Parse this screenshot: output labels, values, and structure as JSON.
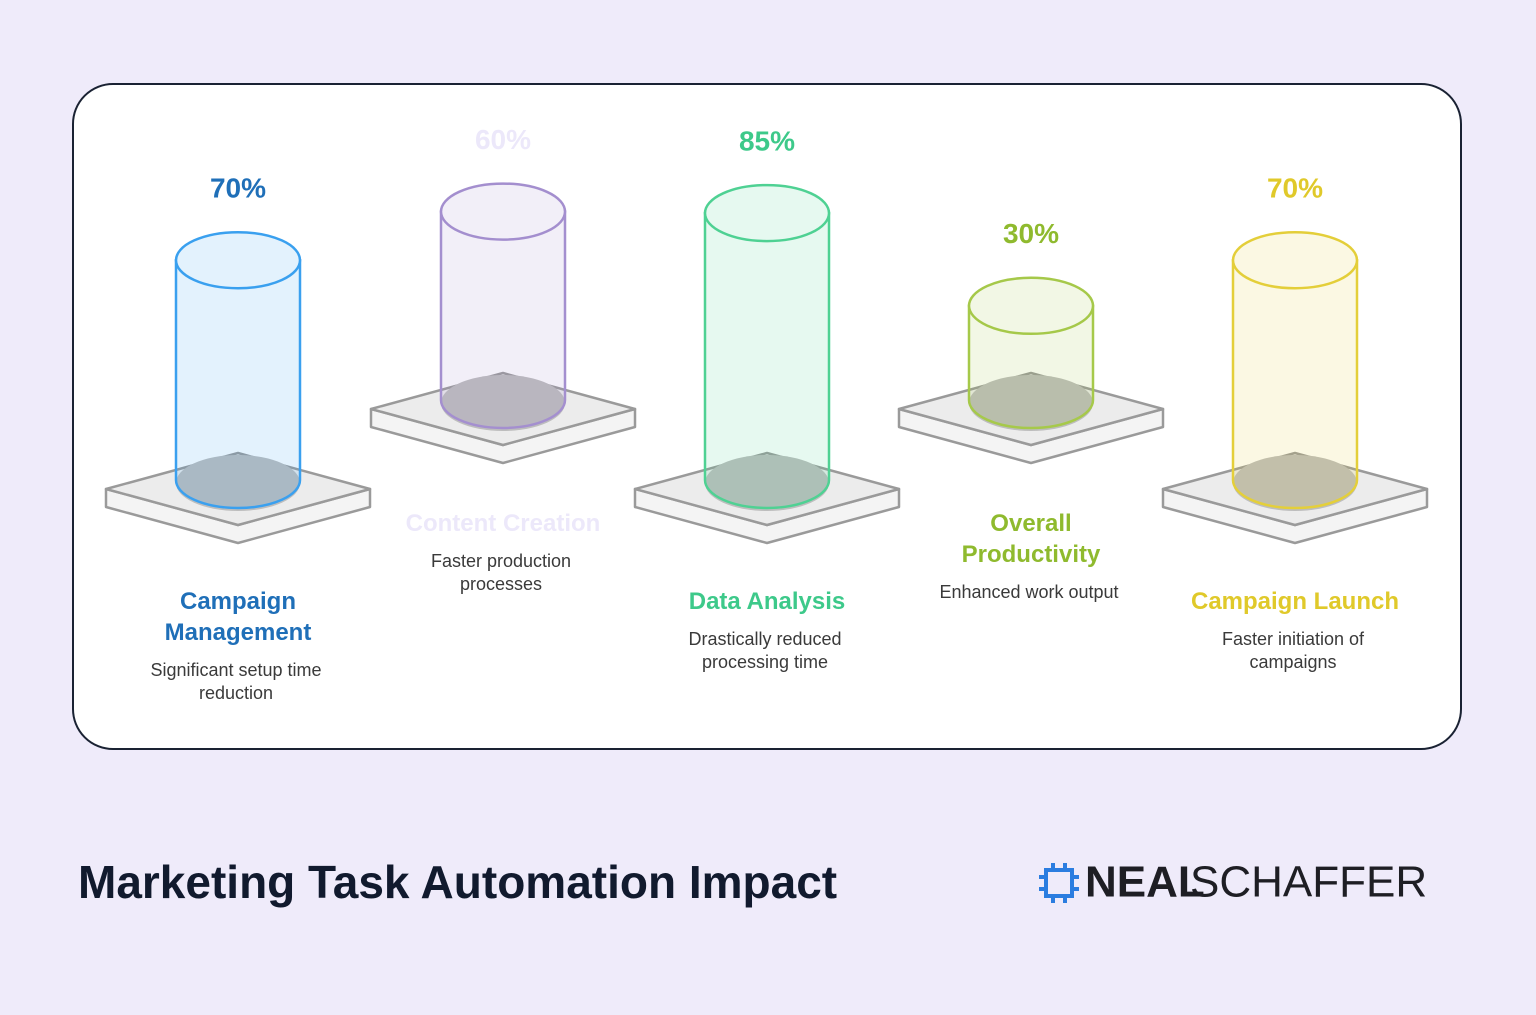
{
  "chart_data": {
    "type": "cylinder",
    "title": "Marketing Task Automation Impact",
    "categories": [
      "Campaign Management",
      "Content Creation",
      "Data Analysis",
      "Overall Productivity",
      "Campaign Launch"
    ],
    "values": [
      70,
      60,
      85,
      30,
      70
    ],
    "value_labels": [
      "70%",
      "60%",
      "85%",
      "30%",
      "70%"
    ],
    "descriptions": [
      "Significant setup time reduction",
      "Faster production processes",
      "Drastically reduced processing time",
      "Enhanced work output",
      "Faster initiation of campaigns"
    ],
    "colors": [
      "#3aa0ef",
      "#a48fcf",
      "#4fd193",
      "#a6c94a",
      "#e4cf3a"
    ],
    "label_colors": [
      "#1f6fb8",
      "#ece8fa",
      "#3dc98a",
      "#8fba2e",
      "#e0c92a"
    ]
  },
  "brand": {
    "first": "NEAL",
    "second": "SCHAFFER"
  }
}
